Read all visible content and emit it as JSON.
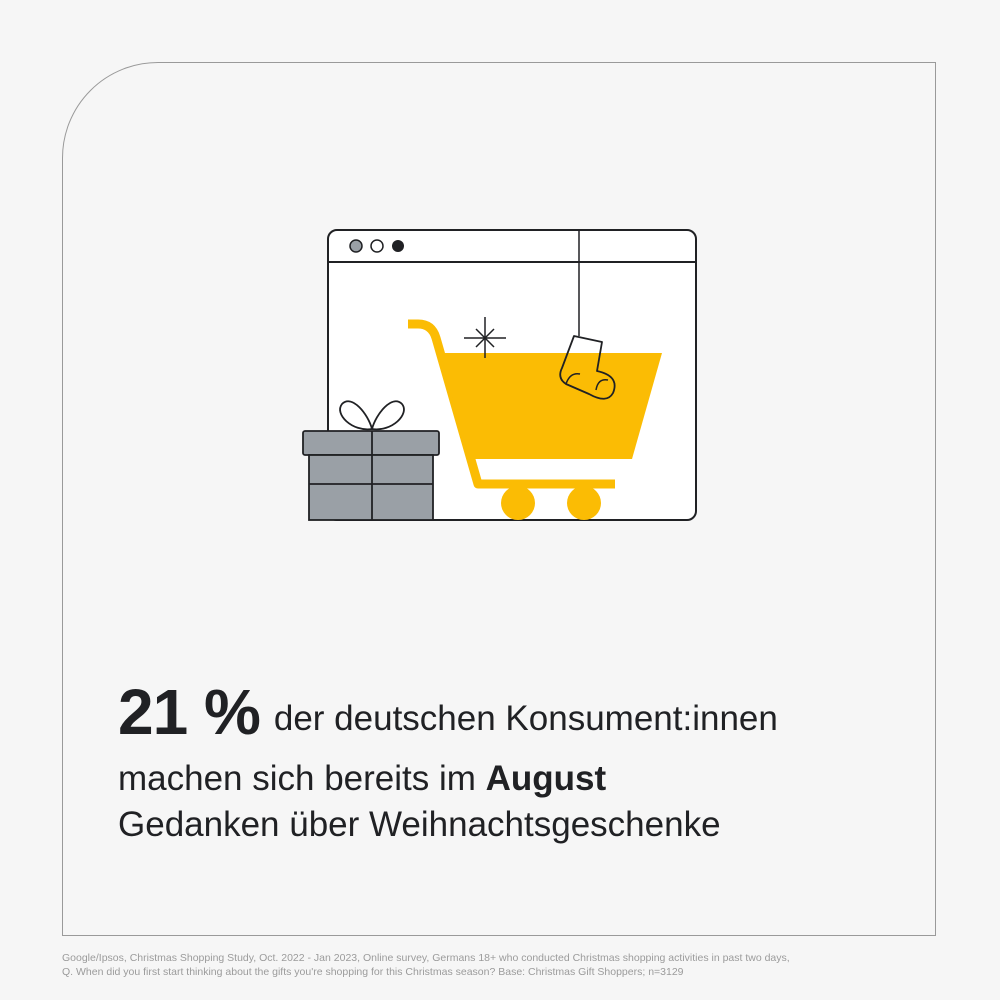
{
  "headline": {
    "stat": "21 %",
    "line1_rest": "der deutschen Konsument:innen",
    "line2_prefix": "machen sich bereits im ",
    "line2_bold": "August",
    "line3": "Gedanken über Weihnachtsgeschenke"
  },
  "footnote": {
    "line1": "Google/Ipsos, Christmas Shopping Study, Oct. 2022 - Jan 2023, Online survey, Germans 18+ who conducted Christmas shopping activities in past two days,",
    "line2": "Q. When did you first start thinking about the gifts you're shopping for this Christmas season? Base: Christmas Gift Shoppers; n=3129"
  },
  "illustration": {
    "icons": [
      "browser-window-icon",
      "shopping-cart-icon",
      "gift-box-icon",
      "christmas-stocking-icon",
      "sparkle-icon"
    ]
  },
  "colors": {
    "background": "#f6f6f6",
    "cart_yellow": "#fbbc04",
    "gift_gray": "#9aa0a6",
    "text": "#202124",
    "footnote": "#9b9b9b"
  }
}
